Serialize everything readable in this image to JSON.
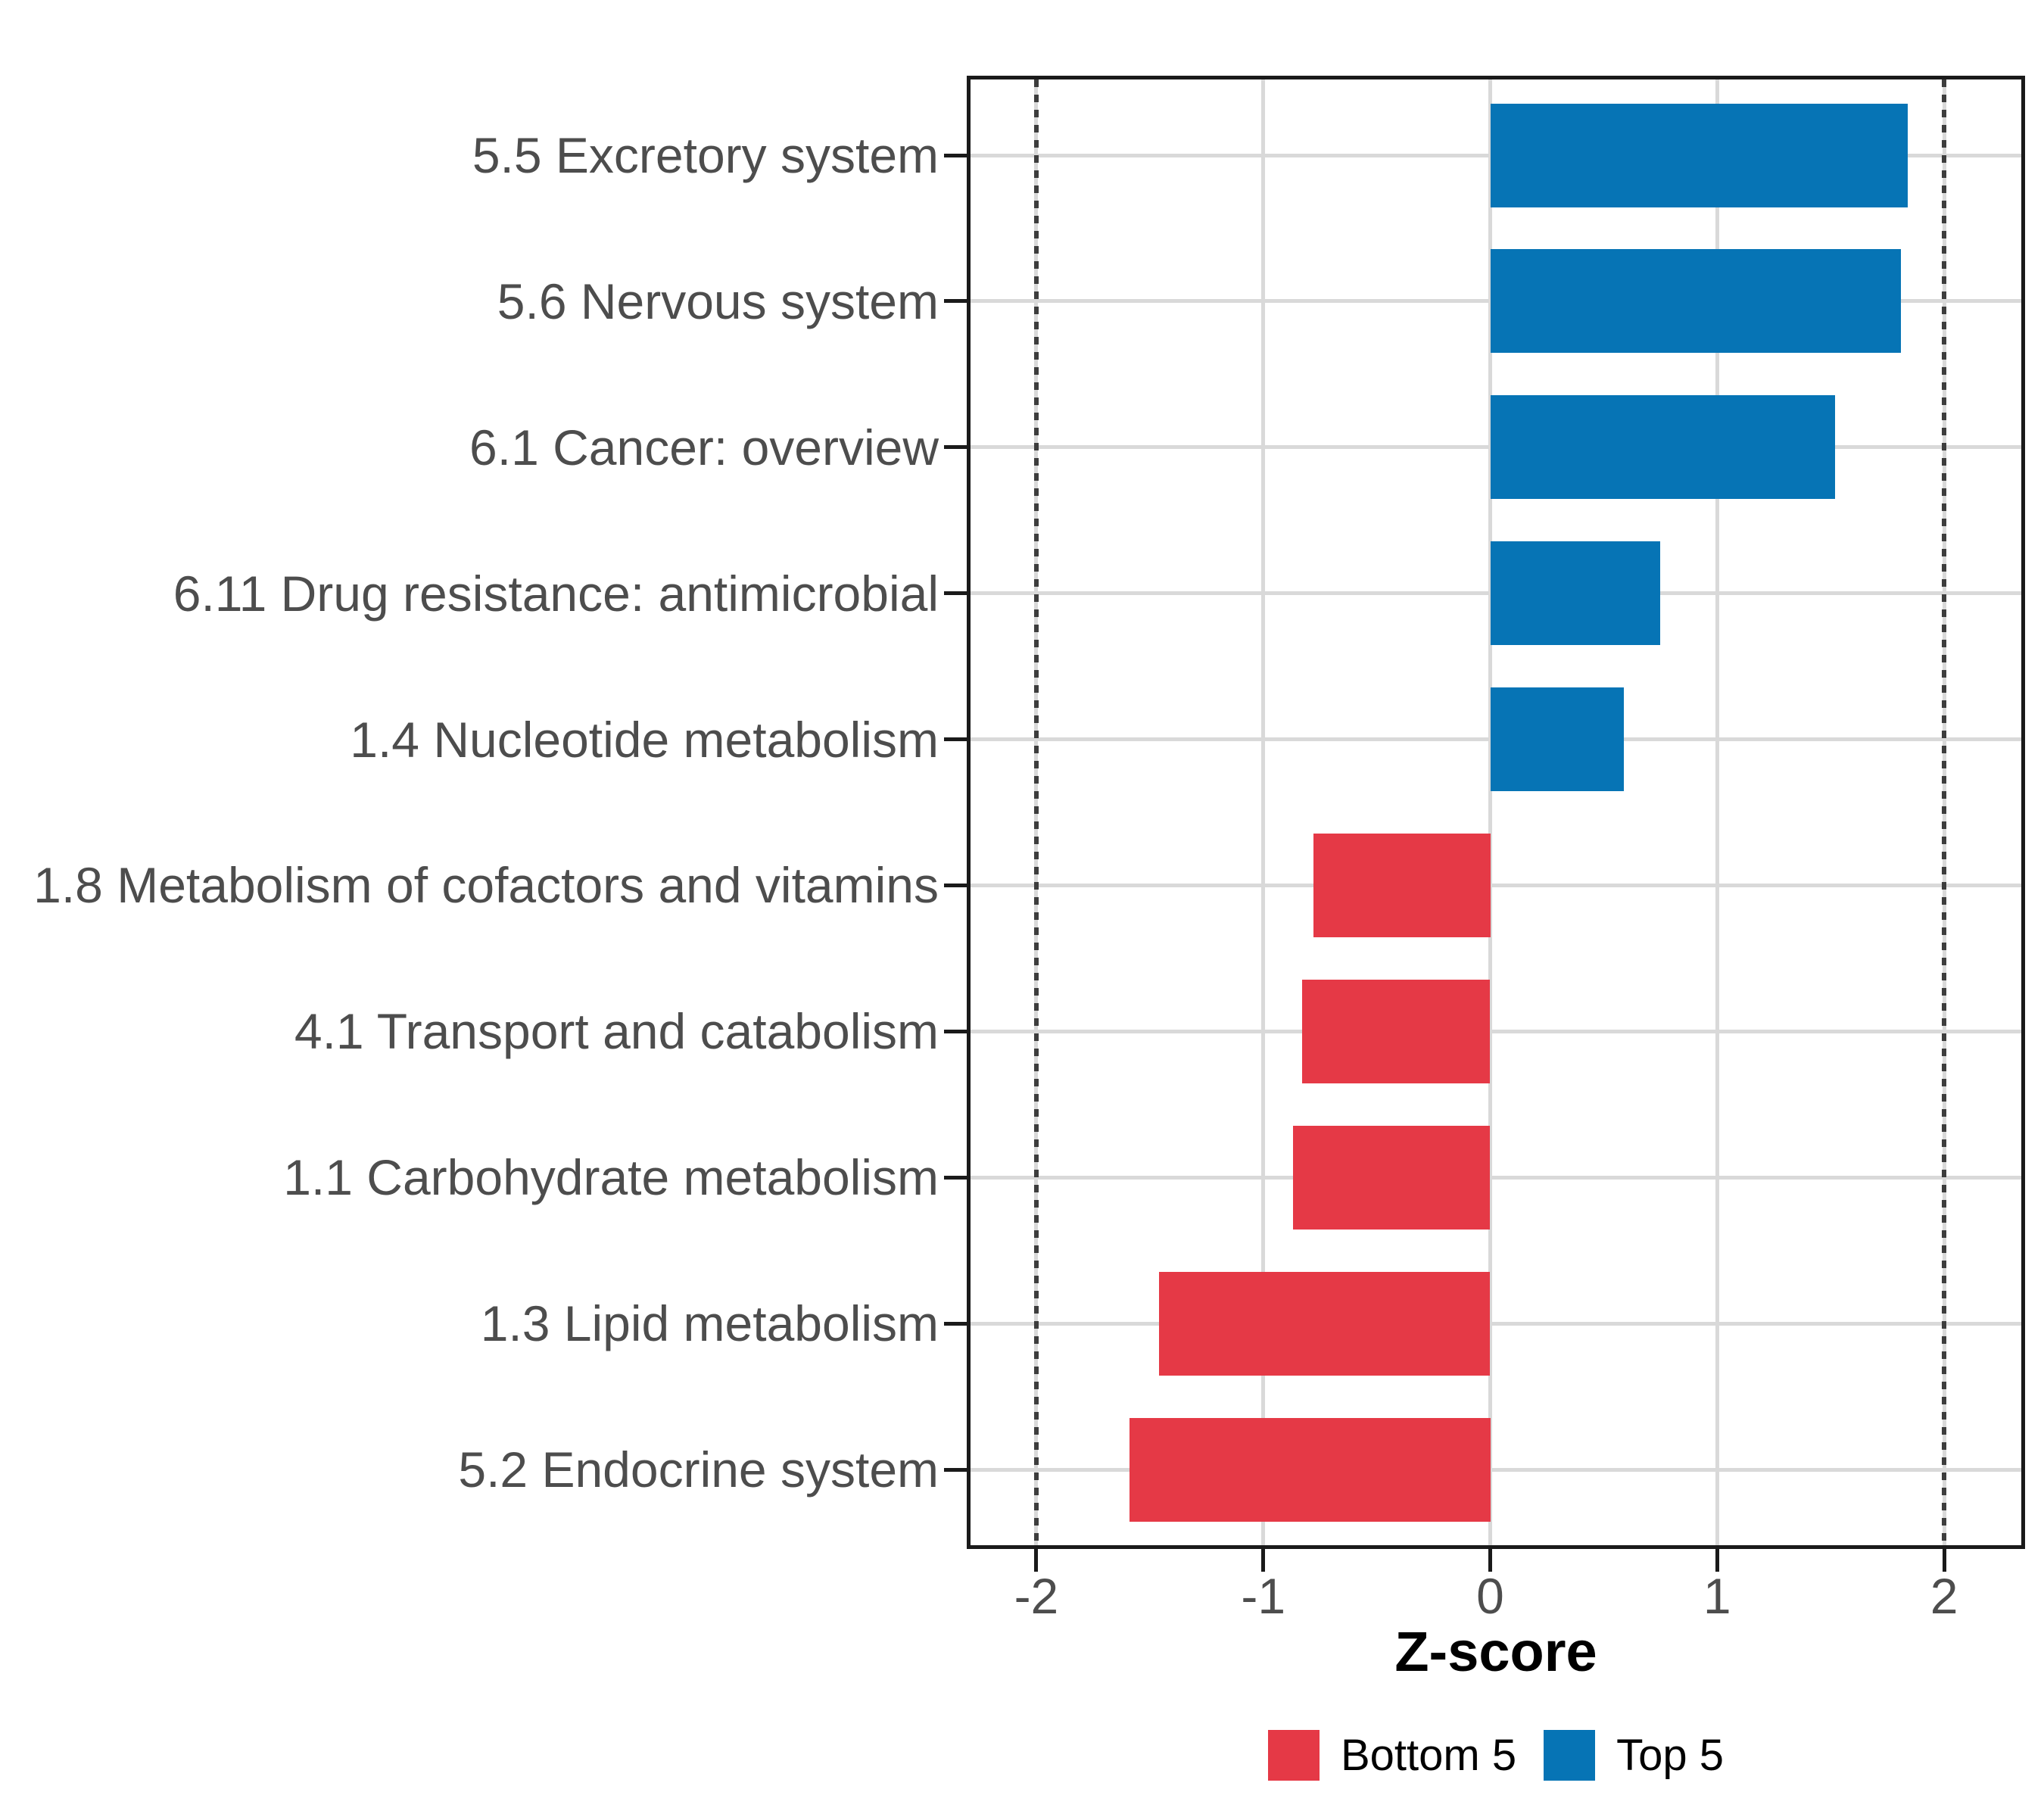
{
  "chart_data": {
    "type": "bar",
    "orientation": "horizontal",
    "title": "",
    "xlabel": "Z-score",
    "categories": [
      "5.5 Excretory system",
      "5.6 Nervous system",
      "6.1 Cancer: overview",
      "6.11 Drug resistance: antimicrobial",
      "1.4 Nucleotide metabolism",
      "1.8 Metabolism of cofactors and vitamins",
      "4.1 Transport and catabolism",
      "1.1 Carbohydrate metabolism",
      "1.3 Lipid metabolism",
      "5.2 Endocrine system"
    ],
    "series": [
      {
        "name": "Z-score",
        "values": [
          1.84,
          1.81,
          1.52,
          0.75,
          0.59,
          -0.78,
          -0.83,
          -0.87,
          -1.46,
          -1.59
        ]
      }
    ],
    "groups": [
      "Top 5",
      "Top 5",
      "Top 5",
      "Top 5",
      "Top 5",
      "Bottom 5",
      "Bottom 5",
      "Bottom 5",
      "Bottom 5",
      "Bottom 5"
    ],
    "group_colors": {
      "Top 5": "#0674B5",
      "Bottom 5": "#E53946"
    },
    "x_ticks": [
      -2,
      -1,
      0,
      1,
      2
    ],
    "x_tick_labels": [
      "-2",
      "-1",
      "0",
      "1",
      "2"
    ],
    "xlim": [
      -2.29,
      2.34
    ],
    "reference_lines": [
      -2,
      2
    ],
    "grid": true,
    "legend": {
      "position": "bottom",
      "entries": [
        {
          "label": "Bottom 5",
          "color": "#E53946"
        },
        {
          "label": "Top 5",
          "color": "#0674B5"
        }
      ]
    },
    "style_colors": {
      "grid": "#d9d9d9",
      "axis_text": "#4d4d4d",
      "panel_border": "#1a1a1a",
      "reference_line": "#3d3d3d"
    }
  }
}
